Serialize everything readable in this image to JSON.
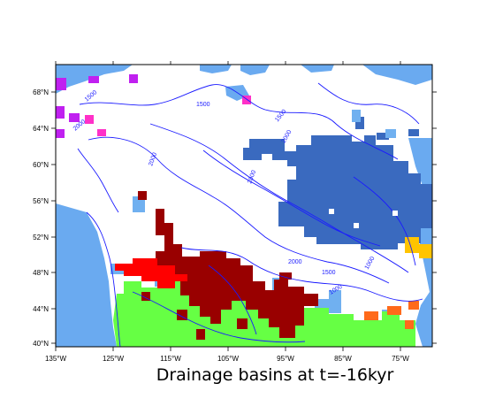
{
  "title": "Drainage basins at t=-16kyr",
  "axes": {
    "x_ticks": [
      "135°W",
      "125°W",
      "115°W",
      "105°W",
      "95°W",
      "85°W",
      "75°W"
    ],
    "y_ticks": [
      "68°N",
      "64°N",
      "60°N",
      "56°N",
      "52°N",
      "48°N",
      "44°N",
      "40°N"
    ]
  },
  "contour_labels": [
    "1500",
    "1500",
    "1500",
    "2000",
    "2000",
    "2000",
    "2000",
    "2000",
    "1500",
    "1000",
    "1000"
  ],
  "colors": {
    "ocean": "#6aaaf0",
    "contour": "#1a1aff",
    "basin_purple": "#c020f0",
    "basin_pink": "#ff30c8",
    "basin_red": "#ff0000",
    "basin_darkred": "#990000",
    "basin_green": "#66ff44",
    "basin_royal": "#3a6abf",
    "basin_sky": "#70b0f0",
    "basin_orange": "#ff6a1a",
    "basin_yellow": "#ffc400"
  }
}
